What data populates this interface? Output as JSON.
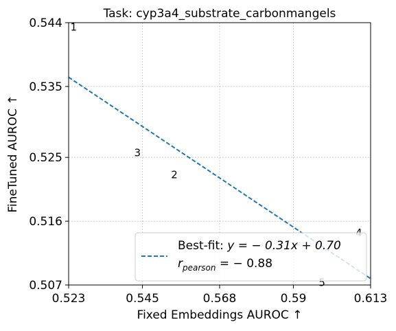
{
  "chart_data": {
    "type": "scatter",
    "title": "Task: cyp3a4_substrate_carbonmangels",
    "xlabel": "Fixed Embeddings AUROC ↑",
    "ylabel": "FineTuned AUROC ↑",
    "xlim": [
      0.523,
      0.613
    ],
    "ylim": [
      0.507,
      0.544
    ],
    "xticks": [
      0.523,
      0.545,
      0.568,
      0.59,
      0.613
    ],
    "xtick_labels": [
      "0.523",
      "0.545",
      "0.568",
      "0.59",
      "0.613"
    ],
    "yticks": [
      0.507,
      0.516,
      0.525,
      0.535,
      0.544
    ],
    "ytick_labels": [
      "0.507",
      "0.516",
      "0.525",
      "0.535",
      "0.544"
    ],
    "grid": true,
    "points": [
      {
        "label": "1",
        "x": 0.5245,
        "y": 0.5433
      },
      {
        "label": "2",
        "x": 0.5545,
        "y": 0.5225
      },
      {
        "label": "3",
        "x": 0.5435,
        "y": 0.5256
      },
      {
        "label": "4",
        "x": 0.6095,
        "y": 0.5143
      },
      {
        "label": "5",
        "x": 0.5985,
        "y": 0.5073
      }
    ],
    "fit": {
      "slope": -0.31,
      "intercept": 0.7,
      "x0": 0.523,
      "y0": 0.5363,
      "x1": 0.613,
      "y1": 0.5079
    },
    "legend": {
      "position": "lower-right",
      "fit_label_prefix": "Best-fit: ",
      "fit_label_eq": "y = − 0.31x + 0.70",
      "r_label_eq": " = − 0.88",
      "r_symbol": "r",
      "r_subscript": "pearson"
    },
    "colors": {
      "fit_line": "#1f77b4",
      "grid": "#cccccc",
      "axis": "#000000"
    }
  }
}
